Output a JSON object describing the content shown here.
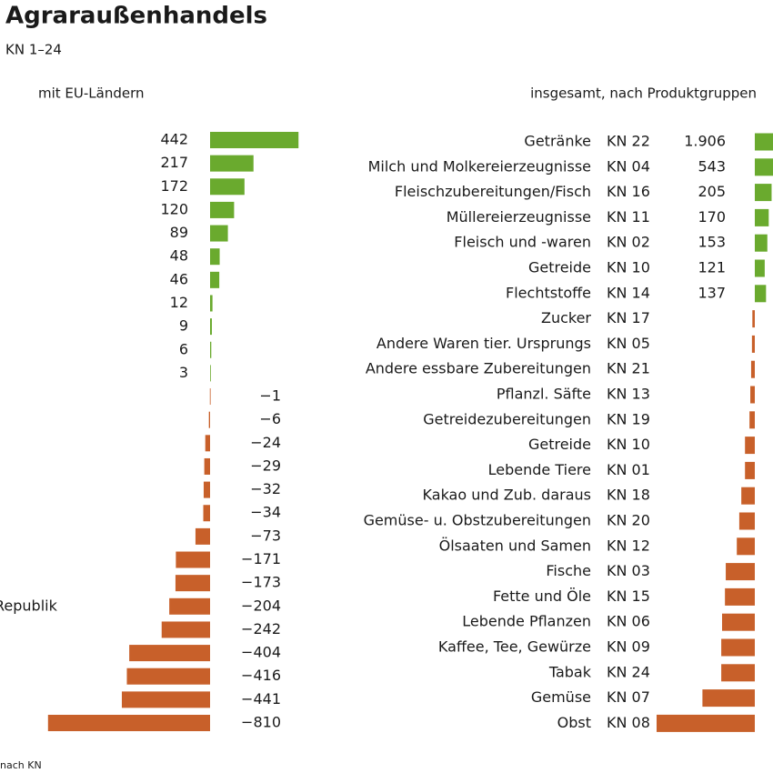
{
  "title": "Agraraußenhandels",
  "subtitle": "KN 1–24",
  "footnote": "nach KN",
  "chart_data": [
    {
      "type": "bar",
      "orientation": "horizontal",
      "title": "mit EU-Ländern",
      "categories": [
        null,
        null,
        null,
        null,
        null,
        null,
        null,
        null,
        null,
        null,
        null,
        null,
        null,
        null,
        null,
        null,
        null,
        null,
        null,
        null,
        "Republik",
        null,
        null,
        null,
        null,
        null
      ],
      "values": [
        442,
        217,
        172,
        120,
        89,
        48,
        46,
        12,
        9,
        6,
        3,
        -1,
        -6,
        -24,
        -29,
        -32,
        -34,
        -73,
        -171,
        -173,
        -204,
        -242,
        -404,
        -416,
        -441,
        -810
      ],
      "value_labels": [
        "442",
        "217",
        "172",
        "120",
        "89",
        "48",
        "46",
        "12",
        "9",
        "6",
        "3",
        "−1",
        "−6",
        "−24",
        "−29",
        "−32",
        "−34",
        "−73",
        "−171",
        "−173",
        "−204",
        "−242",
        "−404",
        "−416",
        "−441",
        "−810"
      ],
      "positive_color": "#6aaa2e",
      "negative_color": "#c8602a"
    },
    {
      "type": "bar",
      "orientation": "horizontal",
      "title": "insgesamt, nach Produktgruppen",
      "categories": [
        "Getränke",
        "Milch und Molkereierzeugnisse",
        "Fleischzubereitungen/Fisch",
        "Müllereierzeugnisse",
        "Fleisch und -waren",
        "Getreide",
        "Flechtstoffe",
        "Zucker",
        "Andere Waren tier. Ursprungs",
        "Andere essbare Zubereitungen",
        "Pflanzl. Säfte",
        "Getreidezubereitungen",
        "Getreide",
        "Lebende Tiere",
        "Kakao und Zub. daraus",
        "Gemüse- u. Obstzubereitungen",
        "Ölsaaten und Samen",
        "Fische",
        "Fette und Öle",
        "Lebende Pflanzen",
        "Kaffee, Tee, Gewürze",
        "Tabak",
        "Gemüse",
        "Obst"
      ],
      "codes": [
        "KN 22",
        "KN 04",
        "KN 16",
        "KN 11",
        "KN 02",
        "KN 10",
        "KN 14",
        "KN 17",
        "KN 05",
        "KN 21",
        "KN 13",
        "KN 19",
        "KN 10",
        "KN 01",
        "KN 18",
        "KN 20",
        "KN 12",
        "KN 03",
        "KN 15",
        "KN 06",
        "KN 09",
        "KN 24",
        "KN 07",
        "KN 08"
      ],
      "values": [
        1906,
        543,
        205,
        170,
        153,
        121,
        137,
        -30,
        -35,
        -45,
        -55,
        -65,
        -120,
        -120,
        -165,
        -190,
        -220,
        -355,
        -365,
        -400,
        -410,
        -410,
        -640,
        -1200
      ],
      "value_labels": [
        "1.906",
        "543",
        "205",
        "170",
        "153",
        "121",
        "137",
        null,
        null,
        null,
        null,
        null,
        null,
        null,
        null,
        null,
        null,
        null,
        null,
        null,
        null,
        null,
        null,
        null
      ],
      "positive_color": "#6aaa2e",
      "negative_color": "#c8602a"
    }
  ]
}
